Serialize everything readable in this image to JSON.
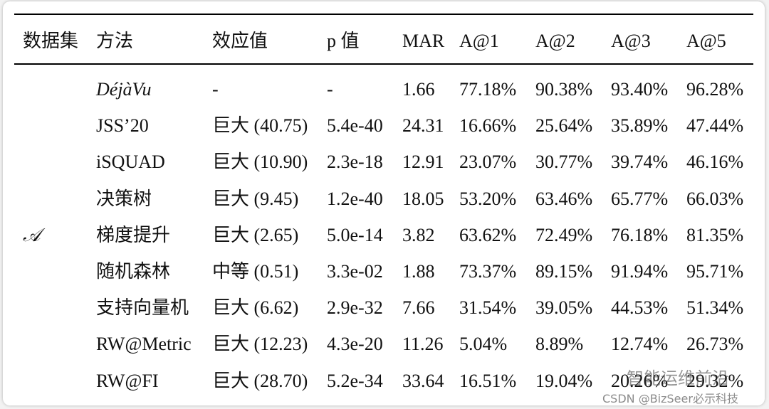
{
  "table": {
    "header": [
      "数据集",
      "方法",
      "效应值",
      "p 值",
      "MAR",
      "A@1",
      "A@2",
      "A@3",
      "A@5"
    ],
    "dataset": "𝒜",
    "rows": [
      [
        "DéjàVu",
        "-",
        "-",
        "1.66",
        "77.18%",
        "90.38%",
        "93.40%",
        "96.28%"
      ],
      [
        "JSS’20",
        "巨大 (40.75)",
        "5.4e-40",
        "24.31",
        "16.66%",
        "25.64%",
        "35.89%",
        "47.44%"
      ],
      [
        "iSQUAD",
        "巨大 (10.90)",
        "2.3e-18",
        "12.91",
        "23.07%",
        "30.77%",
        "39.74%",
        "46.16%"
      ],
      [
        "决策树",
        "巨大 (9.45)",
        "1.2e-40",
        "18.05",
        "53.20%",
        "63.46%",
        "65.77%",
        "66.03%"
      ],
      [
        "梯度提升",
        "巨大 (2.65)",
        "5.0e-14",
        "3.82",
        "63.62%",
        "72.49%",
        "76.18%",
        "81.35%"
      ],
      [
        "随机森林",
        "中等 (0.51)",
        "3.3e-02",
        "1.88",
        "73.37%",
        "89.15%",
        "91.94%",
        "95.71%"
      ],
      [
        "支持向量机",
        "巨大 (6.62)",
        "2.9e-32",
        "7.66",
        "31.54%",
        "39.05%",
        "44.53%",
        "51.34%"
      ],
      [
        "RW@Metric",
        "巨大 (12.23)",
        "4.3e-20",
        "11.26",
        "5.04%",
        "8.89%",
        "12.74%",
        "26.73%"
      ],
      [
        "RW@FI",
        "巨大 (28.70)",
        "5.2e-34",
        "33.64",
        "16.51%",
        "19.04%",
        "20.26%",
        "29.32%"
      ]
    ]
  },
  "watermark": {
    "title": "智能运维前沿",
    "source": "CSDN @BizSeer必示科技"
  }
}
